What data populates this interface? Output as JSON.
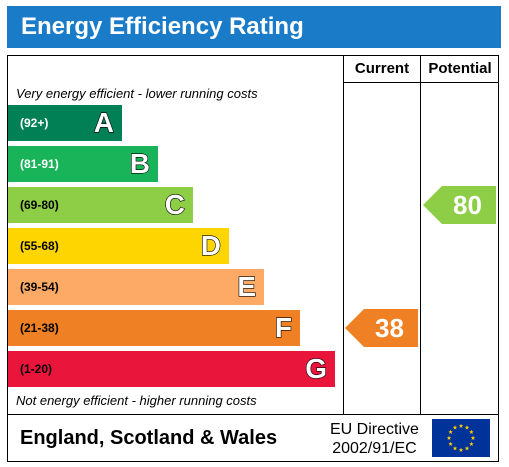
{
  "title": "Energy Efficiency Rating",
  "columns": {
    "current": "Current",
    "potential": "Potential"
  },
  "top_note": "Very energy efficient - lower running costs",
  "bottom_note": "Not energy efficient - higher running costs",
  "chart_data": {
    "type": "bar",
    "title": "Energy Efficiency Rating",
    "bands": [
      {
        "range": "(92+)",
        "letter": "A",
        "color": "#008054",
        "range_color": "#ffffff"
      },
      {
        "range": "(81-91)",
        "letter": "B",
        "color": "#19b459",
        "range_color": "#ffffff"
      },
      {
        "range": "(69-80)",
        "letter": "C",
        "color": "#8dce46",
        "range_color": "#000000"
      },
      {
        "range": "(55-68)",
        "letter": "D",
        "color": "#ffd500",
        "range_color": "#000000"
      },
      {
        "range": "(39-54)",
        "letter": "E",
        "color": "#fcaa65",
        "range_color": "#000000"
      },
      {
        "range": "(21-38)",
        "letter": "F",
        "color": "#ef8023",
        "range_color": "#000000"
      },
      {
        "range": "(1-20)",
        "letter": "G",
        "color": "#e9153b",
        "range_color": "#000000"
      }
    ],
    "current": {
      "value": 38,
      "band": "F",
      "color": "#ef8023"
    },
    "potential": {
      "value": 80,
      "band": "C",
      "color": "#8dce46"
    }
  },
  "footer": {
    "region": "England, Scotland & Wales",
    "directive_line1": "EU Directive",
    "directive_line2": "2002/91/EC",
    "flag_icon": "eu-flag-icon"
  }
}
